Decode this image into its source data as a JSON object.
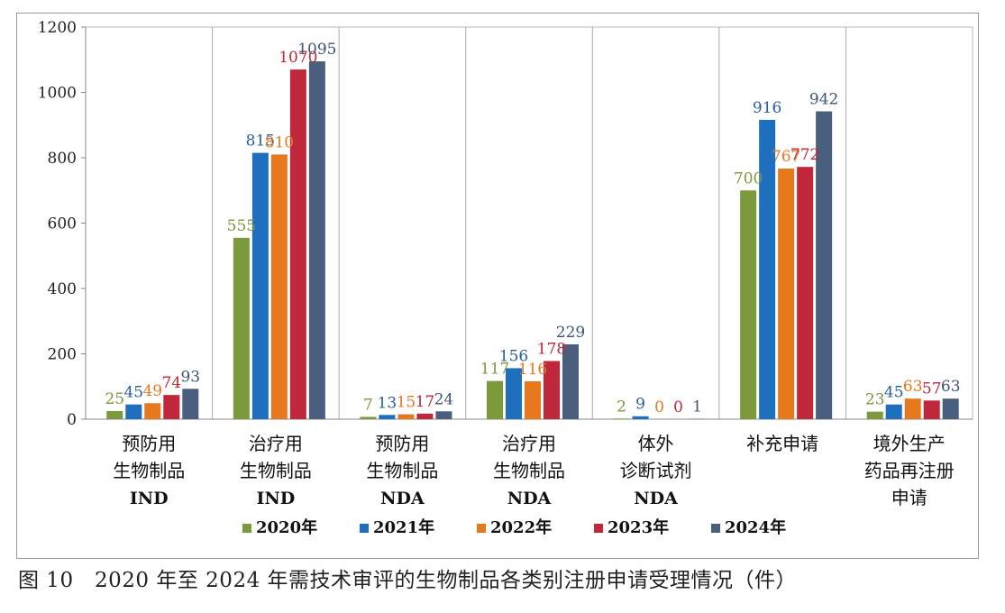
{
  "chart_data": {
    "type": "bar",
    "categories": [
      [
        "预防用",
        "生物制品",
        "IND"
      ],
      [
        "治疗用",
        "生物制品",
        "IND"
      ],
      [
        "预防用",
        "生物制品",
        "NDA"
      ],
      [
        "治疗用",
        "生物制品",
        "NDA"
      ],
      [
        "体外",
        "诊断试剂",
        "NDA"
      ],
      [
        "补充申请"
      ],
      [
        "境外生产",
        "药品再注册",
        "申请"
      ]
    ],
    "series": [
      {
        "name": "2020年",
        "color": "#7a9a3c",
        "values": [
          25,
          555,
          7,
          117,
          2,
          700,
          23
        ]
      },
      {
        "name": "2021年",
        "color": "#1f6fbf",
        "values": [
          45,
          815,
          13,
          156,
          9,
          916,
          45
        ]
      },
      {
        "name": "2022年",
        "color": "#e8781e",
        "values": [
          49,
          810,
          15,
          116,
          0,
          767,
          63
        ]
      },
      {
        "name": "2023年",
        "color": "#c0273a",
        "values": [
          74,
          1070,
          17,
          178,
          0,
          772,
          57
        ]
      },
      {
        "name": "2024年",
        "color": "#4a5e7e",
        "values": [
          93,
          1095,
          24,
          229,
          1,
          942,
          63
        ]
      }
    ],
    "label_colors": [
      "#7a9a3c",
      "#2a5d9a",
      "#e8781e",
      "#c0273a",
      "#3e5478"
    ],
    "ylim": [
      0,
      1200
    ],
    "yticks": [
      0,
      200,
      400,
      600,
      800,
      1000,
      1200
    ],
    "legend_position": "bottom-center"
  },
  "caption": {
    "prefix": "图 10",
    "text": "2020 年至 2024 年需技术审评的生物制品各类别注册申请受理情况（件）"
  }
}
